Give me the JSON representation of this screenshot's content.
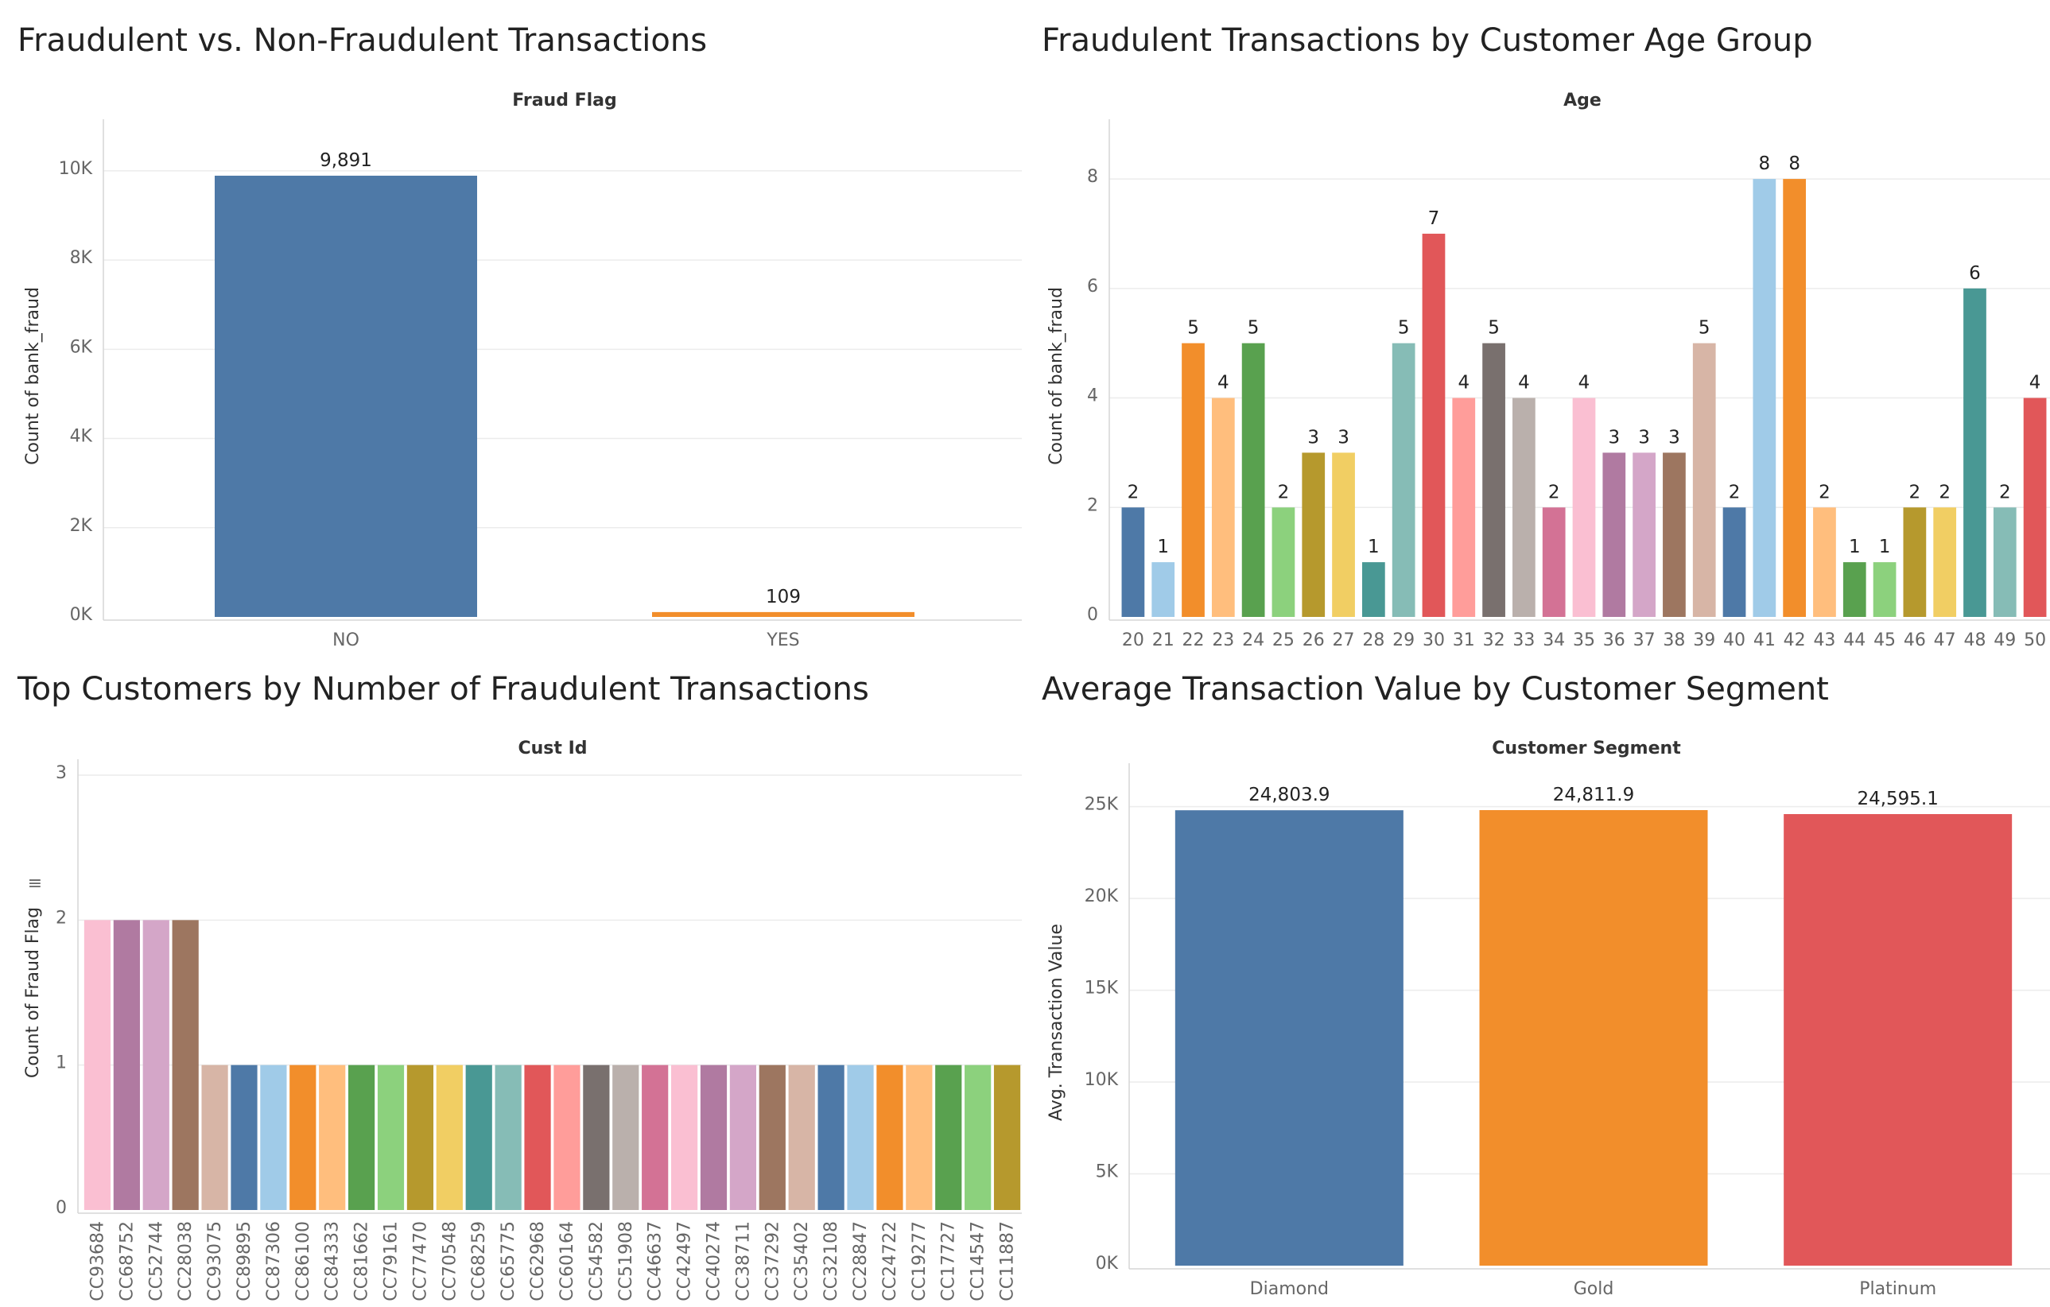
{
  "colors": {
    "palette": [
      "#4e79a7",
      "#a0cbe8",
      "#f28e2b",
      "#ffbe7d",
      "#59a14f",
      "#8cd17d",
      "#b6992d",
      "#f1ce63",
      "#499894",
      "#86bcb6",
      "#e15759",
      "#ff9d9a",
      "#79706e",
      "#bab0ac",
      "#d37295",
      "#fabfd2",
      "#b07aa1",
      "#d4a6c8",
      "#9d7660",
      "#d7b5a6"
    ]
  },
  "chart_data": [
    {
      "type": "bar",
      "title": "Fraudulent vs. Non-Fraudulent Transactions",
      "header": "Fraud Flag",
      "ylabel": "Count of bank_fraud",
      "categories": [
        "NO",
        "YES"
      ],
      "values": [
        9891,
        109
      ],
      "value_labels": [
        "9,891",
        "109"
      ],
      "yticks": [
        "0K",
        "2K",
        "4K",
        "6K",
        "8K",
        "10K"
      ],
      "ylim": [
        0,
        10800
      ],
      "colors": [
        "#4e79a7",
        "#f28e2b"
      ],
      "grid": true
    },
    {
      "type": "bar",
      "title": "Fraudulent Transactions by Customer Age Group",
      "header": "Age",
      "ylabel": "Count of bank_fraud",
      "categories": [
        "20",
        "21",
        "22",
        "23",
        "24",
        "25",
        "26",
        "27",
        "28",
        "29",
        "30",
        "31",
        "32",
        "33",
        "34",
        "35",
        "36",
        "37",
        "38",
        "39",
        "40",
        "41",
        "42",
        "43",
        "44",
        "45",
        "46",
        "47",
        "48",
        "49",
        "50"
      ],
      "values": [
        2,
        1,
        5,
        4,
        5,
        2,
        3,
        3,
        1,
        5,
        7,
        4,
        5,
        4,
        2,
        4,
        3,
        3,
        3,
        5,
        2,
        8,
        8,
        2,
        1,
        1,
        2,
        2,
        6,
        2,
        4
      ],
      "yticks": [
        "0",
        "2",
        "4",
        "6",
        "8"
      ],
      "ylim": [
        0,
        8.8
      ],
      "grid": true
    },
    {
      "type": "bar",
      "title": "Top Customers by Number of Fraudulent Transactions",
      "header": "Cust Id",
      "ylabel": "Count of Fraud Flag",
      "categories": [
        "CC93684",
        "CC68752",
        "CC52744",
        "CC28038",
        "CC93075",
        "CC89895",
        "CC87306",
        "CC86100",
        "CC84333",
        "CC81662",
        "CC79161",
        "CC77470",
        "CC70548",
        "CC68259",
        "CC65775",
        "CC62968",
        "CC60164",
        "CC54582",
        "CC51908",
        "CC46637",
        "CC42497",
        "CC40274",
        "CC38711",
        "CC37292",
        "CC35402",
        "CC32108",
        "CC28847",
        "CC24722",
        "CC19277",
        "CC17727",
        "CC14547",
        "CC11887"
      ],
      "values": [
        2,
        2,
        2,
        2,
        1,
        1,
        1,
        1,
        1,
        1,
        1,
        1,
        1,
        1,
        1,
        1,
        1,
        1,
        1,
        1,
        1,
        1,
        1,
        1,
        1,
        1,
        1,
        1,
        1,
        1,
        1,
        1
      ],
      "yticks": [
        "0",
        "1",
        "2",
        "3"
      ],
      "ylim": [
        0,
        3
      ],
      "grid": true
    },
    {
      "type": "bar",
      "title": "Average Transaction Value by Customer Segment",
      "header": "Customer Segment",
      "ylabel": "Avg. Transaction Value",
      "categories": [
        "Diamond",
        "Gold",
        "Platinum"
      ],
      "values": [
        24803.9,
        24811.9,
        24595.1
      ],
      "value_labels": [
        "24,803.9",
        "24,811.9",
        "24,595.1"
      ],
      "yticks": [
        "0K",
        "5K",
        "10K",
        "15K",
        "20K",
        "25K"
      ],
      "ylim": [
        0,
        26500
      ],
      "colors": [
        "#4e79a7",
        "#f28e2b",
        "#e15759"
      ],
      "grid": true
    }
  ]
}
